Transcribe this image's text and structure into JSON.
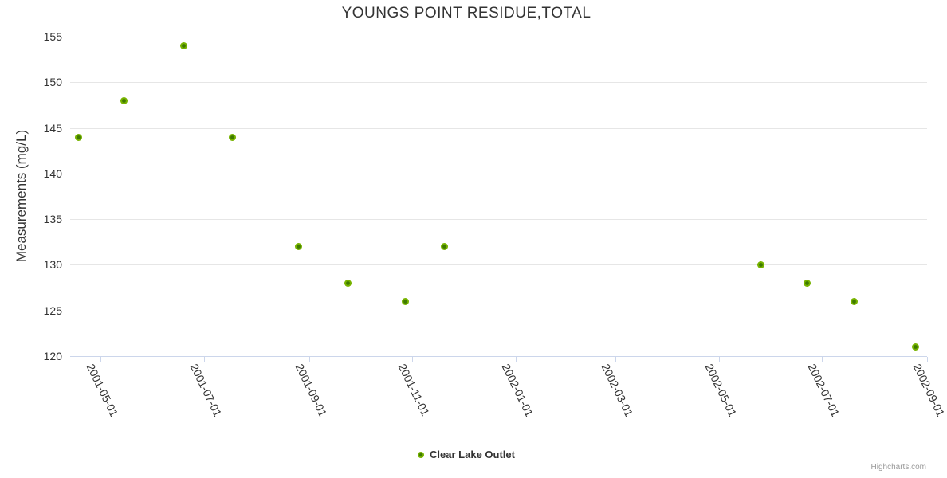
{
  "chart_data": {
    "type": "scatter",
    "title": "YOUNGS POINT RESIDUE,TOTAL",
    "xlabel": "",
    "ylabel": "Measurements (mg/L)",
    "ylim": [
      120,
      155
    ],
    "y_ticks": [
      120,
      125,
      130,
      135,
      140,
      145,
      150,
      155
    ],
    "x_range": [
      "2001-04-13",
      "2002-09-01"
    ],
    "x_ticks": [
      "2001-05-01",
      "2001-07-01",
      "2001-09-01",
      "2001-11-01",
      "2002-01-01",
      "2002-03-01",
      "2002-05-01",
      "2002-07-01",
      "2002-09-01"
    ],
    "grid": true,
    "legend_position": "bottom-center",
    "series": [
      {
        "name": "Clear Lake Outlet",
        "marker_color": "#77b300",
        "marker_center_color": "#3e7a00",
        "points": [
          {
            "x": "2001-04-18",
            "y": 144
          },
          {
            "x": "2001-05-15",
            "y": 148
          },
          {
            "x": "2001-06-19",
            "y": 154
          },
          {
            "x": "2001-07-18",
            "y": 144
          },
          {
            "x": "2001-08-26",
            "y": 132
          },
          {
            "x": "2001-09-24",
            "y": 128
          },
          {
            "x": "2001-10-28",
            "y": 126
          },
          {
            "x": "2001-11-20",
            "y": 132
          },
          {
            "x": "2002-05-26",
            "y": 130
          },
          {
            "x": "2002-06-22",
            "y": 128
          },
          {
            "x": "2002-07-20",
            "y": 126
          },
          {
            "x": "2002-08-25",
            "y": 121
          }
        ]
      }
    ]
  },
  "legend": {
    "label": "Clear Lake Outlet"
  },
  "credits": {
    "label": "Highcharts.com"
  },
  "colors": {
    "grid": "#e6e6e6",
    "axis": "#ccd6eb",
    "text": "#333333",
    "credits": "#999999"
  }
}
